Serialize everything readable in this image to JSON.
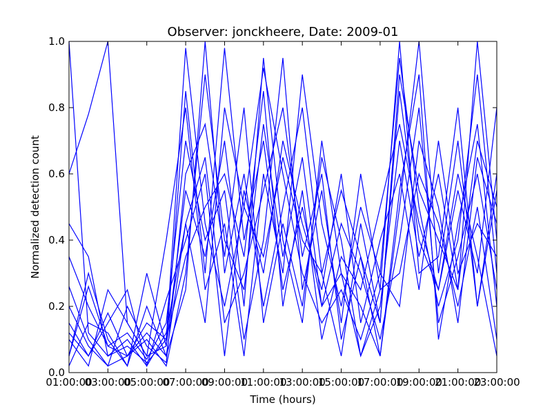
{
  "chart_data": {
    "type": "line",
    "title": "Observer: jonckheere, Date: 2009-01",
    "xlabel": "Time (hours)",
    "ylabel": "Normalized detection count",
    "x": [
      "01:00:00",
      "02:00:00",
      "03:00:00",
      "04:00:00",
      "05:00:00",
      "06:00:00",
      "07:00:00",
      "08:00:00",
      "09:00:00",
      "10:00:00",
      "11:00:00",
      "12:00:00",
      "13:00:00",
      "14:00:00",
      "15:00:00",
      "16:00:00",
      "17:00:00",
      "18:00:00",
      "19:00:00",
      "20:00:00",
      "21:00:00",
      "22:00:00",
      "23:00:00"
    ],
    "xticks": [
      "01:00:00",
      "03:00:00",
      "05:00:00",
      "07:00:00",
      "09:00:00",
      "11:00:00",
      "13:00:00",
      "15:00:00",
      "17:00:00",
      "19:00:00",
      "21:00:00",
      "23:00:00"
    ],
    "yticks": [
      "0.0",
      "0.2",
      "0.4",
      "0.6",
      "0.8",
      "1.0"
    ],
    "ylim": [
      0,
      1
    ],
    "grid": false,
    "series_color": "#0000ff",
    "series": [
      {
        "values": [
          1.0,
          0.12,
          0.05,
          0.08,
          0.03,
          0.1,
          0.98,
          0.45,
          0.2,
          0.5,
          0.92,
          0.6,
          0.3,
          0.15,
          0.25,
          0.1,
          0.3,
          0.95,
          0.5,
          0.2,
          0.4,
          0.9,
          0.3
        ]
      },
      {
        "values": [
          0.6,
          0.78,
          1.0,
          0.15,
          0.05,
          0.08,
          0.85,
          0.3,
          0.98,
          0.4,
          0.7,
          0.25,
          0.5,
          0.2,
          0.3,
          0.05,
          0.2,
          0.7,
          0.35,
          0.6,
          0.25,
          1.0,
          0.4
        ]
      },
      {
        "values": [
          0.05,
          0.3,
          0.1,
          0.02,
          0.2,
          0.05,
          0.45,
          0.65,
          0.15,
          0.3,
          0.55,
          0.8,
          0.35,
          0.6,
          0.1,
          0.35,
          0.05,
          0.5,
          1.0,
          0.3,
          0.7,
          0.2,
          0.55
        ]
      },
      {
        "values": [
          0.12,
          0.05,
          0.18,
          0.05,
          0.1,
          0.02,
          0.3,
          0.9,
          0.4,
          0.25,
          0.75,
          0.35,
          0.65,
          0.2,
          0.45,
          0.3,
          0.1,
          0.4,
          0.8,
          0.15,
          0.35,
          0.6,
          0.25
        ]
      },
      {
        "values": [
          0.35,
          0.2,
          0.08,
          0.12,
          0.04,
          0.15,
          0.7,
          0.4,
          0.55,
          0.1,
          0.4,
          0.95,
          0.25,
          0.55,
          0.15,
          0.6,
          0.25,
          0.3,
          0.6,
          0.45,
          0.2,
          0.5,
          0.1
        ]
      },
      {
        "values": [
          0.2,
          0.08,
          0.02,
          0.05,
          0.12,
          0.05,
          0.25,
          1.0,
          0.3,
          0.6,
          0.2,
          0.5,
          0.8,
          0.3,
          0.05,
          0.45,
          0.15,
          0.85,
          0.4,
          0.25,
          0.55,
          0.3,
          0.8
        ]
      },
      {
        "values": [
          0.02,
          0.15,
          0.12,
          0.02,
          0.3,
          0.08,
          0.55,
          0.35,
          0.7,
          0.2,
          0.95,
          0.4,
          0.15,
          0.7,
          0.3,
          0.2,
          0.05,
          0.55,
          0.9,
          0.1,
          0.45,
          0.75,
          0.2
        ]
      },
      {
        "values": [
          0.45,
          0.35,
          0.05,
          0.1,
          0.02,
          0.22,
          0.4,
          0.6,
          0.05,
          0.55,
          0.3,
          0.7,
          0.45,
          0.25,
          0.6,
          0.15,
          0.4,
          0.6,
          0.25,
          0.7,
          0.3,
          0.45,
          0.35
        ]
      },
      {
        "values": [
          0.1,
          0.02,
          0.25,
          0.15,
          0.05,
          0.4,
          0.8,
          0.25,
          0.45,
          0.05,
          0.6,
          0.3,
          0.9,
          0.45,
          0.2,
          0.5,
          0.3,
          0.2,
          0.7,
          0.5,
          0.15,
          0.65,
          0.45
        ]
      },
      {
        "values": [
          0.26,
          0.1,
          0.02,
          0.2,
          0.08,
          0.03,
          0.6,
          0.75,
          0.35,
          0.8,
          0.15,
          0.45,
          0.2,
          0.65,
          0.4,
          0.05,
          0.25,
          1.0,
          0.3,
          0.35,
          0.8,
          0.2,
          0.6
        ]
      },
      {
        "values": [
          0.05,
          0.26,
          0.08,
          0.05,
          0.15,
          0.1,
          0.35,
          0.5,
          0.6,
          0.35,
          0.85,
          0.2,
          0.55,
          0.1,
          0.35,
          0.25,
          0.5,
          0.75,
          0.45,
          0.25,
          0.6,
          0.35,
          0.05
        ]
      },
      {
        "values": [
          0.15,
          0.05,
          0.15,
          0.25,
          0.02,
          0.12,
          0.45,
          0.15,
          0.8,
          0.5,
          0.35,
          0.65,
          0.4,
          0.3,
          0.55,
          0.35,
          0.15,
          0.9,
          0.55,
          0.4,
          0.25,
          0.7,
          0.5
        ]
      }
    ]
  }
}
